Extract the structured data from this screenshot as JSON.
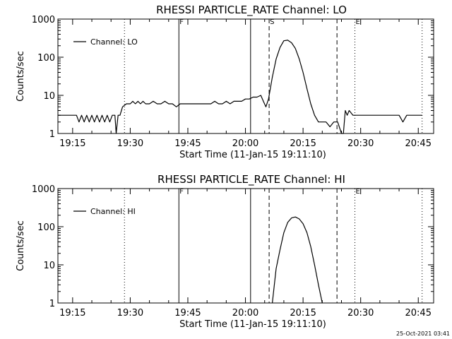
{
  "stamp": "25-Oct-2021 03:41",
  "chart_data": [
    {
      "type": "line",
      "title": "RHESSI PARTICLE_RATE Channel: LO",
      "xlabel": "Start Time (11-Jan-15 19:11:10)",
      "ylabel": "Counts/sec",
      "yscale": "log",
      "xlim": [
        "19:11:10",
        "20:49:00"
      ],
      "ylim": [
        1,
        1000
      ],
      "x_ticks": [
        "19:15",
        "19:30",
        "19:45",
        "20:00",
        "20:15",
        "20:30",
        "20:45"
      ],
      "y_ticks": [
        "1",
        "10",
        "100",
        "1000"
      ],
      "legend": {
        "position": "top-left",
        "label": "Channel: LO"
      },
      "markers": [
        {
          "time": "19:28:30",
          "style": "dotted",
          "label": ""
        },
        {
          "time": "19:42:40",
          "style": "solid",
          "label": "F"
        },
        {
          "time": "20:01:20",
          "style": "solid",
          "label": ""
        },
        {
          "time": "20:06:10",
          "style": "dashed",
          "label": "S"
        },
        {
          "time": "20:23:50",
          "style": "dashed",
          "label": ""
        },
        {
          "time": "20:28:30",
          "style": "dotted",
          "label": "E"
        },
        {
          "time": "20:46:00",
          "style": "dotted",
          "label": ""
        }
      ],
      "series": [
        {
          "label": "Channel: LO",
          "x": [
            "19:11:10",
            "19:14:00",
            "19:16:00",
            "19:16:40",
            "19:17:20",
            "19:18:00",
            "19:18:40",
            "19:19:20",
            "19:20:00",
            "19:20:40",
            "19:21:20",
            "19:22:00",
            "19:22:40",
            "19:23:20",
            "19:24:00",
            "19:24:40",
            "19:25:20",
            "19:26:00",
            "19:26:20",
            "19:26:50",
            "19:27:20",
            "19:28:00",
            "19:29:00",
            "19:30:00",
            "19:30:40",
            "19:31:20",
            "19:32:00",
            "19:32:40",
            "19:33:20",
            "19:34:00",
            "19:35:00",
            "19:36:00",
            "19:37:00",
            "19:38:00",
            "19:39:00",
            "19:40:00",
            "19:41:00",
            "19:42:00",
            "19:43:00",
            "19:44:00",
            "19:45:00",
            "19:46:00",
            "19:47:00",
            "19:48:00",
            "19:49:00",
            "19:50:00",
            "19:51:00",
            "19:52:00",
            "19:53:00",
            "19:54:00",
            "19:55:00",
            "19:56:00",
            "19:57:00",
            "19:58:00",
            "19:59:00",
            "20:00:00",
            "20:01:00",
            "20:02:00",
            "20:03:00",
            "20:04:00",
            "20:04:40",
            "20:05:20",
            "20:06:00",
            "20:07:00",
            "20:08:00",
            "20:09:00",
            "20:10:00",
            "20:11:00",
            "20:12:00",
            "20:13:00",
            "20:14:00",
            "20:15:00",
            "20:16:00",
            "20:17:00",
            "20:18:00",
            "20:19:00",
            "20:20:00",
            "20:21:00",
            "20:22:00",
            "20:23:00",
            "20:24:00",
            "20:25:00",
            "20:25:30",
            "20:26:00",
            "20:26:30",
            "20:27:00",
            "20:28:00",
            "20:29:00",
            "20:30:00",
            "20:31:00",
            "20:32:00",
            "20:33:00",
            "20:34:00",
            "20:35:00",
            "20:36:00",
            "20:37:00",
            "20:38:00",
            "20:39:00",
            "20:40:00",
            "20:41:00",
            "20:42:00",
            "20:43:00",
            "20:44:00",
            "20:45:00",
            "20:46:00"
          ],
          "y": [
            3,
            3,
            3,
            2,
            3,
            2,
            3,
            2,
            3,
            2,
            3,
            2,
            3,
            2,
            3,
            2,
            3,
            3,
            1,
            3,
            3,
            5,
            6,
            6,
            7,
            6,
            7,
            6,
            7,
            6,
            6,
            7,
            6,
            6,
            7,
            6,
            6,
            5,
            6,
            6,
            6,
            6,
            6,
            6,
            6,
            6,
            6,
            7,
            6,
            6,
            7,
            6,
            7,
            7,
            7,
            8,
            8,
            9,
            9,
            10,
            7,
            5,
            8,
            30,
            90,
            180,
            270,
            280,
            240,
            170,
            90,
            40,
            15,
            6,
            3,
            2,
            2,
            2,
            1.5,
            2,
            2,
            1,
            1,
            4,
            3,
            4,
            3,
            3,
            3,
            3,
            3,
            3,
            3,
            3,
            3,
            3,
            3,
            3,
            3,
            2,
            3,
            3,
            3,
            3,
            3
          ]
        }
      ]
    },
    {
      "type": "line",
      "title": "RHESSI PARTICLE_RATE Channel: HI",
      "xlabel": "Start Time (11-Jan-15 19:11:10)",
      "ylabel": "Counts/sec",
      "yscale": "log",
      "xlim": [
        "19:11:10",
        "20:49:00"
      ],
      "ylim": [
        1,
        1000
      ],
      "x_ticks": [
        "19:15",
        "19:30",
        "19:45",
        "20:00",
        "20:15",
        "20:30",
        "20:45"
      ],
      "y_ticks": [
        "1",
        "10",
        "100",
        "1000"
      ],
      "legend": {
        "position": "top-left",
        "label": "Channel: HI"
      },
      "markers": [
        {
          "time": "19:28:30",
          "style": "dotted",
          "label": ""
        },
        {
          "time": "19:42:40",
          "style": "solid",
          "label": "F"
        },
        {
          "time": "20:01:20",
          "style": "solid",
          "label": ""
        },
        {
          "time": "20:06:10",
          "style": "dashed",
          "label": ""
        },
        {
          "time": "20:23:50",
          "style": "dashed",
          "label": ""
        },
        {
          "time": "20:28:30",
          "style": "dotted",
          "label": "E"
        },
        {
          "time": "20:46:00",
          "style": "dotted",
          "label": ""
        }
      ],
      "series": [
        {
          "label": "Channel: HI",
          "x": [
            "20:07:00",
            "20:07:20",
            "20:08:00",
            "20:09:00",
            "20:10:00",
            "20:11:00",
            "20:12:00",
            "20:13:00",
            "20:14:00",
            "20:15:00",
            "20:16:00",
            "20:17:00",
            "20:18:00",
            "20:19:00",
            "20:20:00"
          ],
          "y": [
            1,
            2,
            8,
            25,
            70,
            130,
            170,
            180,
            160,
            120,
            70,
            30,
            10,
            3,
            1
          ]
        }
      ]
    }
  ]
}
